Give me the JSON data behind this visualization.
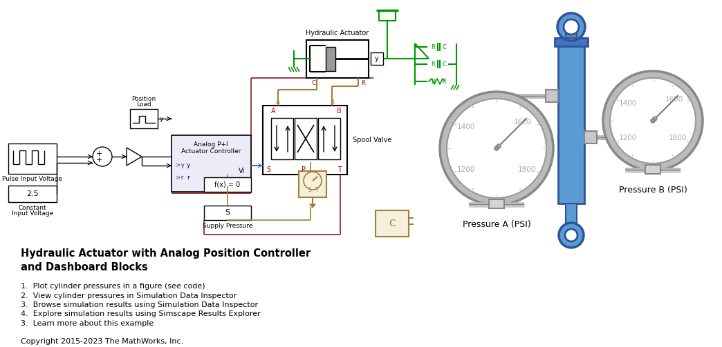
{
  "title": "Hydraulic Actuator with Analog Position Controller\nand Dashboard Blocks",
  "bg_color": "#ffffff",
  "text_color": "#000000",
  "list_items": [
    "1.  Plot cylinder pressures in a figure (see code)",
    "2.  View cylinder pressures in Simulation Data Inspector",
    "3.  Browse simulation results using Simulation Data Inspector",
    "4.  Explore simulation results using Simscape Results Explorer",
    "3.  Learn more about this example"
  ],
  "copyright": "Copyright 2015-2023 The MathWorks, Inc.",
  "green_color": "#008000",
  "dark_green": "#006400",
  "blue_color": "#4472C4",
  "blue_dark": "#2F5496",
  "red_color": "#C00000",
  "gold_color": "#B8860B",
  "gray_color": "#808080",
  "light_gray": "#D3D3D3",
  "border_gray": "#555555",
  "simulink_blue": "#4169E1",
  "line_green": "#009900",
  "gauge_gray": "#AAAAAA",
  "gauge_outer": "#C8C8C8",
  "cyl_blue": "#5B9BD5",
  "cyl_dark": "#2F5496"
}
